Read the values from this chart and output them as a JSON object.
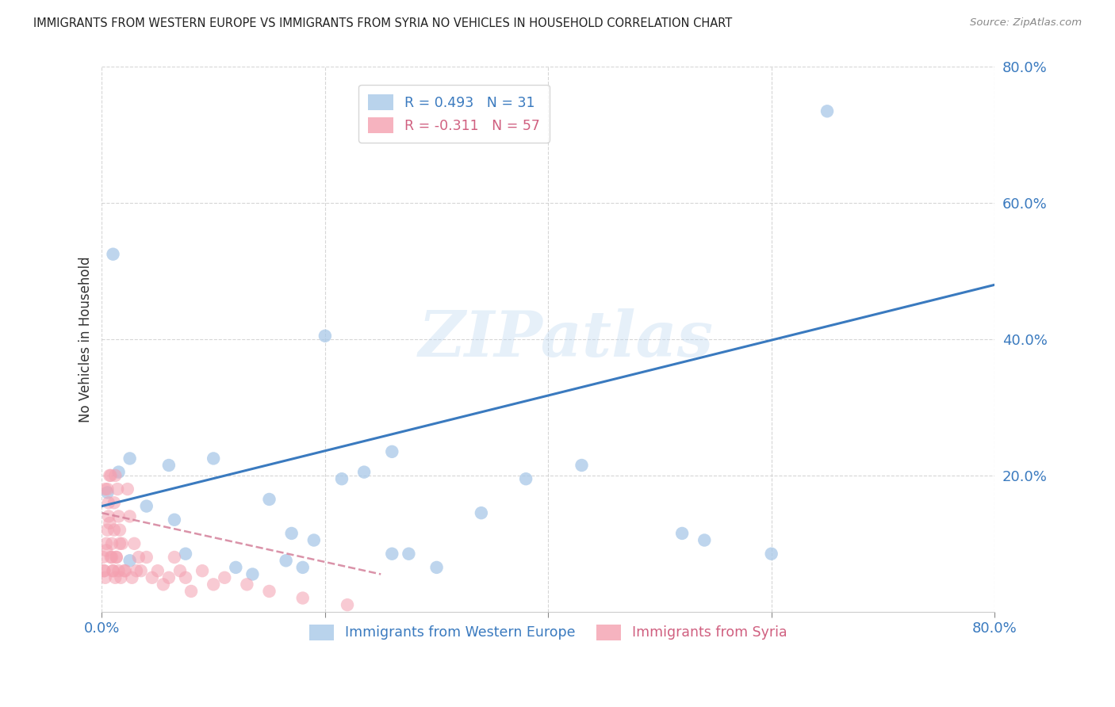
{
  "title": "IMMIGRANTS FROM WESTERN EUROPE VS IMMIGRANTS FROM SYRIA NO VEHICLES IN HOUSEHOLD CORRELATION CHART",
  "source": "Source: ZipAtlas.com",
  "ylabel": "No Vehicles in Household",
  "xlim": [
    0.0,
    0.8
  ],
  "ylim": [
    0.0,
    0.8
  ],
  "xtick_values": [
    0.0,
    0.2,
    0.4,
    0.6,
    0.8
  ],
  "ytick_values": [
    0.2,
    0.4,
    0.6,
    0.8
  ],
  "background_color": "#ffffff",
  "grid_color": "#cccccc",
  "blue_color": "#a8c8e8",
  "pink_color": "#f4a0b0",
  "blue_line_color": "#3a7abf",
  "pink_line_color": "#d4809a",
  "legend_r1": "R = 0.493",
  "legend_n1": "N = 31",
  "legend_r2": "R = -0.311",
  "legend_n2": "N = 57",
  "watermark": "ZIPatlas",
  "legend_blue_label": "Immigrants from Western Europe",
  "legend_pink_label": "Immigrants from Syria",
  "blue_line_x0": 0.0,
  "blue_line_y0": 0.155,
  "blue_line_x1": 0.8,
  "blue_line_y1": 0.48,
  "pink_line_x0": 0.0,
  "pink_line_y0": 0.145,
  "pink_line_x1": 0.25,
  "pink_line_y1": 0.055,
  "blue_scatter_x": [
    0.005,
    0.015,
    0.025,
    0.01,
    0.06,
    0.025,
    0.04,
    0.1,
    0.065,
    0.075,
    0.12,
    0.15,
    0.135,
    0.17,
    0.19,
    0.165,
    0.18,
    0.215,
    0.2,
    0.235,
    0.26,
    0.26,
    0.275,
    0.3,
    0.34,
    0.38,
    0.43,
    0.52,
    0.54,
    0.6,
    0.65
  ],
  "blue_scatter_y": [
    0.175,
    0.205,
    0.225,
    0.525,
    0.215,
    0.075,
    0.155,
    0.225,
    0.135,
    0.085,
    0.065,
    0.165,
    0.055,
    0.115,
    0.105,
    0.075,
    0.065,
    0.195,
    0.405,
    0.205,
    0.235,
    0.085,
    0.085,
    0.065,
    0.145,
    0.195,
    0.215,
    0.115,
    0.105,
    0.085,
    0.735
  ],
  "pink_scatter_x": [
    0.001,
    0.002,
    0.003,
    0.004,
    0.005,
    0.006,
    0.007,
    0.008,
    0.009,
    0.01,
    0.011,
    0.012,
    0.013,
    0.014,
    0.015,
    0.016,
    0.002,
    0.003,
    0.004,
    0.005,
    0.006,
    0.007,
    0.008,
    0.009,
    0.01,
    0.011,
    0.012,
    0.013,
    0.015,
    0.016,
    0.017,
    0.018,
    0.02,
    0.021,
    0.023,
    0.025,
    0.027,
    0.029,
    0.031,
    0.033,
    0.035,
    0.04,
    0.045,
    0.05,
    0.055,
    0.06,
    0.065,
    0.07,
    0.075,
    0.08,
    0.09,
    0.1,
    0.11,
    0.13,
    0.15,
    0.18,
    0.22
  ],
  "pink_scatter_y": [
    0.08,
    0.06,
    0.05,
    0.1,
    0.18,
    0.16,
    0.13,
    0.2,
    0.08,
    0.06,
    0.12,
    0.05,
    0.08,
    0.18,
    0.14,
    0.1,
    0.06,
    0.18,
    0.09,
    0.12,
    0.14,
    0.2,
    0.08,
    0.1,
    0.06,
    0.16,
    0.2,
    0.08,
    0.06,
    0.12,
    0.05,
    0.1,
    0.06,
    0.06,
    0.18,
    0.14,
    0.05,
    0.1,
    0.06,
    0.08,
    0.06,
    0.08,
    0.05,
    0.06,
    0.04,
    0.05,
    0.08,
    0.06,
    0.05,
    0.03,
    0.06,
    0.04,
    0.05,
    0.04,
    0.03,
    0.02,
    0.01
  ]
}
